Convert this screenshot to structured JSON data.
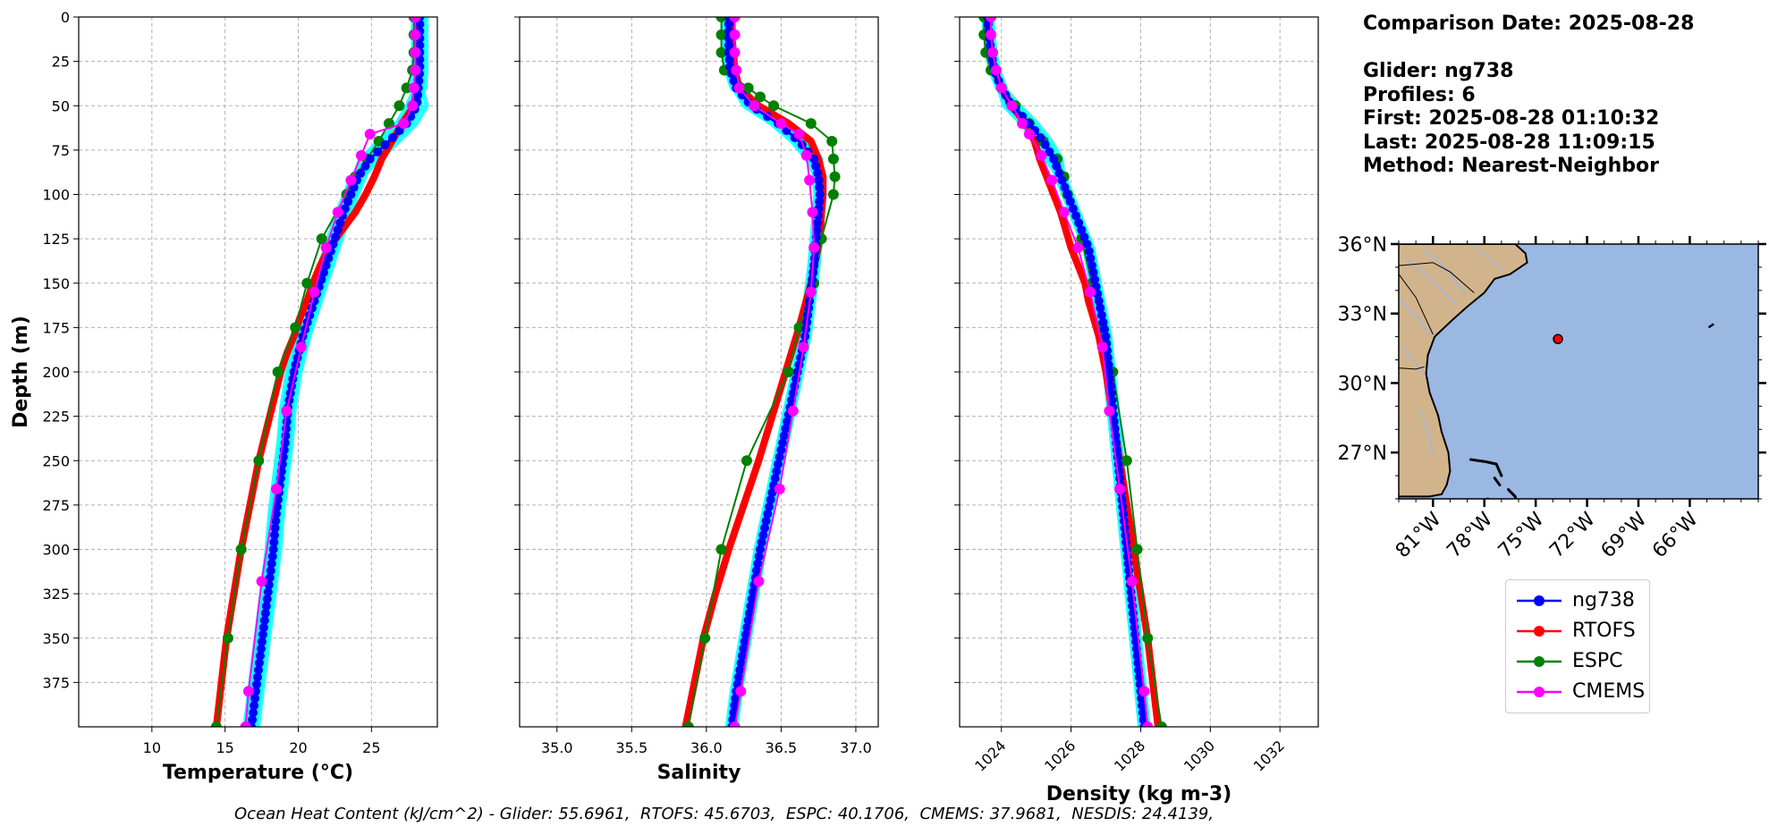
{
  "chart_data": [
    {
      "type": "line",
      "xlabel": "Temperature (°C)",
      "ylabel": "Depth (m)",
      "xlim": [
        5,
        29.5
      ],
      "ylim": [
        400,
        0
      ],
      "xticks": [
        10,
        15,
        20,
        25
      ],
      "yticks": [
        0,
        25,
        50,
        75,
        100,
        125,
        150,
        175,
        200,
        225,
        250,
        275,
        300,
        325,
        350,
        375
      ],
      "grid": true,
      "series": [
        {
          "name": "ng738",
          "color": "#0000ff",
          "depth": [
            0,
            10,
            20,
            30,
            40,
            50,
            60,
            70,
            80,
            90,
            100,
            110,
            120,
            130,
            140,
            150,
            160,
            170,
            180,
            190,
            200,
            220,
            240,
            260,
            280,
            300,
            320,
            340,
            360,
            380,
            400
          ],
          "values": [
            28.3,
            28.3,
            28.3,
            28.3,
            28.2,
            28.1,
            27.4,
            26.2,
            24.9,
            24.1,
            23.6,
            23.1,
            22.7,
            22.3,
            21.9,
            21.5,
            21.1,
            20.7,
            20.3,
            20.0,
            19.7,
            19.3,
            19.1,
            18.8,
            18.5,
            18.3,
            18.0,
            17.7,
            17.4,
            17.1,
            16.8
          ]
        },
        {
          "name": "RTOFS",
          "color": "#ff0000",
          "depth": [
            0,
            10,
            20,
            30,
            40,
            50,
            60,
            70,
            80,
            90,
            100,
            110,
            120,
            130,
            140,
            150,
            160,
            170,
            180,
            190,
            200,
            250,
            300,
            350,
            400
          ],
          "values": [
            28.2,
            28.2,
            28.2,
            28.2,
            28.1,
            27.9,
            27.1,
            26.4,
            25.7,
            25.2,
            24.6,
            23.9,
            23.0,
            22.1,
            21.5,
            21.0,
            20.6,
            20.1,
            19.7,
            19.2,
            18.8,
            17.3,
            16.1,
            15.1,
            14.4
          ]
        },
        {
          "name": "ESPC",
          "color": "#008000",
          "depth": [
            0,
            10,
            20,
            30,
            40,
            50,
            60,
            70,
            80,
            90,
            100,
            125,
            150,
            175,
            200,
            250,
            300,
            350,
            400
          ],
          "values": [
            27.9,
            27.9,
            27.9,
            27.8,
            27.4,
            26.9,
            26.2,
            25.5,
            24.7,
            23.9,
            23.3,
            21.6,
            20.6,
            19.8,
            18.6,
            17.3,
            16.1,
            15.2,
            14.4
          ]
        },
        {
          "name": "CMEMS",
          "color": "#ff00ff",
          "depth": [
            0,
            10,
            20,
            30,
            40,
            50,
            60,
            66,
            78,
            92,
            110,
            130,
            155,
            186,
            222,
            266,
            318,
            380,
            400
          ],
          "values": [
            28.0,
            28.0,
            28.0,
            28.0,
            27.9,
            27.8,
            27.2,
            24.9,
            24.3,
            23.6,
            22.7,
            21.9,
            21.1,
            20.2,
            19.2,
            18.5,
            17.5,
            16.6,
            16.4
          ]
        }
      ]
    },
    {
      "type": "line",
      "xlabel": "Salinity",
      "xlim": [
        34.75,
        37.15
      ],
      "ylim": [
        400,
        0
      ],
      "xticks": [
        35.0,
        35.5,
        36.0,
        36.5,
        37.0
      ],
      "grid": true,
      "series": [
        {
          "name": "ng738",
          "depth": [
            0,
            10,
            20,
            30,
            40,
            50,
            60,
            70,
            80,
            90,
            100,
            120,
            140,
            160,
            180,
            200,
            220,
            240,
            260,
            280,
            300,
            320,
            340,
            360,
            380,
            400
          ],
          "values": [
            36.15,
            36.15,
            36.15,
            36.16,
            36.2,
            36.3,
            36.48,
            36.62,
            36.72,
            36.75,
            36.76,
            36.74,
            36.72,
            36.69,
            36.66,
            36.61,
            36.56,
            36.51,
            36.46,
            36.41,
            36.36,
            36.32,
            36.28,
            36.24,
            36.2,
            36.17
          ]
        },
        {
          "name": "RTOFS",
          "depth": [
            0,
            10,
            20,
            30,
            40,
            50,
            60,
            70,
            80,
            90,
            100,
            110,
            125,
            150,
            175,
            200,
            225,
            250,
            275,
            300,
            325,
            350,
            375,
            400
          ],
          "values": [
            36.17,
            36.17,
            36.18,
            36.19,
            36.22,
            36.35,
            36.55,
            36.7,
            36.75,
            36.78,
            36.78,
            36.77,
            36.76,
            36.7,
            36.62,
            36.53,
            36.44,
            36.35,
            36.25,
            36.15,
            36.06,
            35.98,
            35.92,
            35.86
          ]
        },
        {
          "name": "ESPC",
          "depth": [
            0,
            10,
            20,
            30,
            40,
            45,
            50,
            60,
            70,
            80,
            90,
            100,
            125,
            150,
            175,
            200,
            250,
            300,
            350,
            400
          ],
          "values": [
            36.1,
            36.1,
            36.1,
            36.12,
            36.28,
            36.36,
            36.45,
            36.7,
            36.84,
            36.85,
            36.86,
            36.85,
            36.77,
            36.72,
            36.62,
            36.55,
            36.27,
            36.1,
            35.99,
            35.88
          ]
        },
        {
          "name": "CMEMS",
          "depth": [
            0,
            10,
            20,
            30,
            40,
            50,
            60,
            66,
            78,
            92,
            110,
            130,
            155,
            186,
            222,
            266,
            318,
            380,
            400
          ],
          "values": [
            36.19,
            36.19,
            36.19,
            36.2,
            36.22,
            36.32,
            36.5,
            36.62,
            36.67,
            36.69,
            36.71,
            36.72,
            36.7,
            36.65,
            36.58,
            36.49,
            36.35,
            36.23,
            36.19
          ]
        }
      ]
    },
    {
      "type": "line",
      "xlabel": "Density (kg m-3)",
      "xlim": [
        1022.8,
        1033.1
      ],
      "ylim": [
        400,
        0
      ],
      "xticks": [
        1024,
        1026,
        1028,
        1030,
        1032
      ],
      "grid": true,
      "series": [
        {
          "name": "ng738",
          "depth": [
            0,
            10,
            20,
            30,
            40,
            50,
            60,
            70,
            80,
            90,
            100,
            110,
            120,
            130,
            140,
            150,
            160,
            170,
            180,
            190,
            200,
            220,
            240,
            260,
            280,
            300,
            320,
            340,
            360,
            380,
            400
          ],
          "values": [
            1023.6,
            1023.65,
            1023.7,
            1023.8,
            1024.0,
            1024.3,
            1024.8,
            1025.2,
            1025.5,
            1025.7,
            1025.9,
            1026.1,
            1026.3,
            1026.5,
            1026.6,
            1026.7,
            1026.8,
            1026.9,
            1027.0,
            1027.05,
            1027.1,
            1027.2,
            1027.3,
            1027.4,
            1027.5,
            1027.6,
            1027.7,
            1027.8,
            1027.9,
            1028.0,
            1028.1
          ]
        },
        {
          "name": "RTOFS",
          "depth": [
            0,
            10,
            20,
            30,
            40,
            50,
            60,
            70,
            80,
            90,
            100,
            110,
            120,
            130,
            140,
            150,
            160,
            170,
            180,
            190,
            200,
            250,
            300,
            350,
            400
          ],
          "values": [
            1023.6,
            1023.65,
            1023.7,
            1023.8,
            1024.0,
            1024.3,
            1024.7,
            1024.95,
            1025.1,
            1025.3,
            1025.5,
            1025.7,
            1025.85,
            1026.0,
            1026.2,
            1026.4,
            1026.5,
            1026.65,
            1026.8,
            1026.9,
            1027.0,
            1027.4,
            1027.8,
            1028.2,
            1028.5
          ]
        },
        {
          "name": "ESPC",
          "depth": [
            0,
            10,
            20,
            30,
            40,
            50,
            60,
            70,
            80,
            90,
            100,
            125,
            150,
            175,
            200,
            250,
            300,
            350,
            400
          ],
          "values": [
            1023.5,
            1023.5,
            1023.55,
            1023.7,
            1024.0,
            1024.4,
            1024.8,
            1025.2,
            1025.6,
            1025.8,
            1025.9,
            1026.3,
            1026.6,
            1026.9,
            1027.2,
            1027.6,
            1027.9,
            1028.2,
            1028.6
          ]
        },
        {
          "name": "CMEMS",
          "depth": [
            0,
            10,
            20,
            30,
            40,
            50,
            60,
            66,
            78,
            92,
            110,
            130,
            155,
            186,
            222,
            266,
            318,
            380,
            400
          ],
          "values": [
            1023.7,
            1023.7,
            1023.75,
            1023.85,
            1024.0,
            1024.3,
            1024.6,
            1024.8,
            1025.15,
            1025.45,
            1025.8,
            1026.2,
            1026.55,
            1026.9,
            1027.1,
            1027.4,
            1027.75,
            1028.1,
            1028.2
          ]
        }
      ]
    }
  ],
  "glider_obs_color": "#00ffff",
  "info": {
    "comparison": "Comparison Date: 2025-08-28",
    "glider": "Glider: ng738",
    "profiles": "Profiles: 6",
    "first": "First: 2025-08-28 01:10:32",
    "last": "Last: 2025-08-28 11:09:15",
    "method": "Method: Nearest-Neighbor"
  },
  "map": {
    "lon_range": [
      -83,
      -62
    ],
    "lat_range": [
      25,
      36
    ],
    "lat_ticks": [
      {
        "v": 36,
        "label": "36°N"
      },
      {
        "v": 33,
        "label": "33°N"
      },
      {
        "v": 30,
        "label": "30°N"
      },
      {
        "v": 27,
        "label": "27°N"
      }
    ],
    "lon_ticks": [
      {
        "v": -81,
        "label": "81°W"
      },
      {
        "v": -78,
        "label": "78°W"
      },
      {
        "v": -75,
        "label": "75°W"
      },
      {
        "v": -72,
        "label": "72°W"
      },
      {
        "v": -69,
        "label": "69°W"
      },
      {
        "v": -66,
        "label": "66°W"
      }
    ],
    "ocean_color": "#9bb8e3",
    "land_color": "#d2b48c",
    "glider_position": {
      "lon": -73.7,
      "lat": 31.9
    }
  },
  "legend": [
    {
      "label": "ng738",
      "color": "#0000ff"
    },
    {
      "label": "RTOFS",
      "color": "#ff0000"
    },
    {
      "label": "ESPC",
      "color": "#008000"
    },
    {
      "label": "CMEMS",
      "color": "#ff00ff"
    }
  ],
  "ohc_text": "Ocean Heat Content (kJ/cm^2) - Glider: 55.6961,  RTOFS: 45.6703,  ESPC: 40.1706,  CMEMS: 37.9681,  NESDIS: 24.4139,"
}
